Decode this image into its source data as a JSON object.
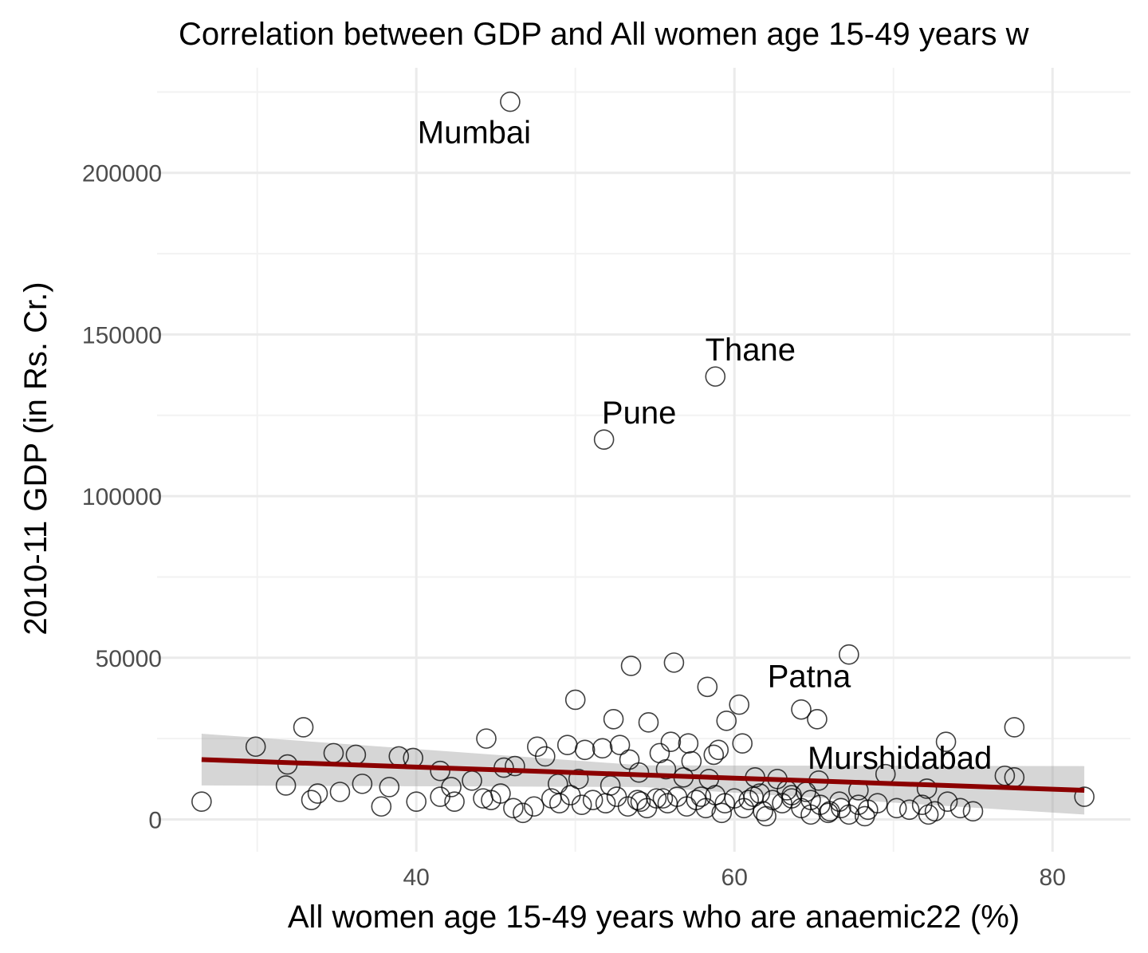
{
  "chart_data": {
    "type": "scatter",
    "title": "Correlation between GDP and All women age 15-49 years w",
    "xlabel": "All women age 15-49 years who are anaemic22 (%)",
    "ylabel": "2010-11 GDP (in Rs. Cr.)",
    "xlim": [
      23.7,
      84.9
    ],
    "ylim": [
      -10000,
      232500
    ],
    "x_ticks": [
      40,
      60,
      80
    ],
    "x_tick_labels": [
      "40",
      "60",
      "80"
    ],
    "x_minor_ticks": [
      30,
      50,
      70
    ],
    "y_ticks": [
      0,
      50000,
      100000,
      150000,
      200000
    ],
    "y_tick_labels": [
      "0",
      "50000",
      "100000",
      "150000",
      "200000"
    ],
    "y_minor_ticks": [
      25000,
      75000,
      125000,
      175000,
      225000
    ],
    "grid": true,
    "colors": {
      "trend": "#8b0000",
      "ribbon": "#999999",
      "points": "#000000"
    },
    "points": [
      [
        45.9,
        222000
      ],
      [
        58.8,
        137000
      ],
      [
        51.8,
        117500
      ],
      [
        67.2,
        51000
      ],
      [
        56.2,
        48500
      ],
      [
        53.5,
        47500
      ],
      [
        58.3,
        41000
      ],
      [
        60.3,
        35500
      ],
      [
        64.2,
        34000
      ],
      [
        65.2,
        31000
      ],
      [
        59.5,
        30500
      ],
      [
        52.4,
        31000
      ],
      [
        54.6,
        30000
      ],
      [
        50.0,
        37000
      ],
      [
        32.9,
        28500
      ],
      [
        77.6,
        28500
      ],
      [
        73.3,
        24000
      ],
      [
        29.9,
        22500
      ],
      [
        44.4,
        25000
      ],
      [
        47.6,
        22500
      ],
      [
        49.5,
        23000
      ],
      [
        50.6,
        21500
      ],
      [
        51.7,
        22000
      ],
      [
        52.8,
        23000
      ],
      [
        55.3,
        20500
      ],
      [
        56.0,
        24000
      ],
      [
        57.1,
        23500
      ],
      [
        58.7,
        20000
      ],
      [
        60.5,
        23500
      ],
      [
        59.0,
        21500
      ],
      [
        31.9,
        17000
      ],
      [
        34.8,
        20500
      ],
      [
        36.2,
        20000
      ],
      [
        38.9,
        19500
      ],
      [
        39.8,
        19000
      ],
      [
        41.5,
        15000
      ],
      [
        45.5,
        16000
      ],
      [
        46.2,
        16500
      ],
      [
        48.1,
        19500
      ],
      [
        53.4,
        18500
      ],
      [
        54.0,
        14500
      ],
      [
        55.7,
        15500
      ],
      [
        57.3,
        18000
      ],
      [
        61.3,
        13000
      ],
      [
        62.7,
        12500
      ],
      [
        65.3,
        12000
      ],
      [
        69.5,
        14000
      ],
      [
        31.8,
        10500
      ],
      [
        36.6,
        11000
      ],
      [
        38.3,
        10000
      ],
      [
        42.2,
        10000
      ],
      [
        43.5,
        12000
      ],
      [
        48.9,
        11000
      ],
      [
        50.2,
        12500
      ],
      [
        52.2,
        10500
      ],
      [
        56.8,
        13000
      ],
      [
        58.4,
        12500
      ],
      [
        63.3,
        9000
      ],
      [
        67.8,
        9000
      ],
      [
        72.1,
        9500
      ],
      [
        77.0,
        13500
      ],
      [
        77.6,
        13000
      ],
      [
        26.5,
        5500
      ],
      [
        33.4,
        6000
      ],
      [
        33.8,
        8000
      ],
      [
        35.2,
        8500
      ],
      [
        37.8,
        4000
      ],
      [
        40.0,
        5500
      ],
      [
        41.5,
        7000
      ],
      [
        42.4,
        5500
      ],
      [
        44.2,
        6500
      ],
      [
        44.7,
        6000
      ],
      [
        45.3,
        8000
      ],
      [
        46.1,
        3500
      ],
      [
        46.7,
        2000
      ],
      [
        47.4,
        4000
      ],
      [
        48.5,
        6500
      ],
      [
        49.0,
        5000
      ],
      [
        49.7,
        7500
      ],
      [
        50.4,
        4500
      ],
      [
        51.1,
        6000
      ],
      [
        51.9,
        5000
      ],
      [
        52.6,
        7000
      ],
      [
        53.3,
        4000
      ],
      [
        53.9,
        6000
      ],
      [
        54.5,
        3500
      ],
      [
        55.1,
        6500
      ],
      [
        55.8,
        5000
      ],
      [
        56.4,
        7000
      ],
      [
        57.0,
        4000
      ],
      [
        57.6,
        6000
      ],
      [
        58.2,
        3500
      ],
      [
        58.8,
        7500
      ],
      [
        59.4,
        5000
      ],
      [
        60.0,
        6500
      ],
      [
        60.6,
        3500
      ],
      [
        61.2,
        7000
      ],
      [
        61.8,
        2500
      ],
      [
        62.4,
        6000
      ],
      [
        63.0,
        5000
      ],
      [
        63.6,
        7500
      ],
      [
        64.2,
        3500
      ],
      [
        64.8,
        6000
      ],
      [
        65.4,
        4500
      ],
      [
        66.0,
        2500
      ],
      [
        66.6,
        5500
      ],
      [
        67.2,
        1500
      ],
      [
        67.8,
        4500
      ],
      [
        68.4,
        3000
      ],
      [
        69.0,
        5000
      ],
      [
        70.2,
        3500
      ],
      [
        71.0,
        3000
      ],
      [
        71.8,
        4500
      ],
      [
        72.6,
        2500
      ],
      [
        73.4,
        5500
      ],
      [
        74.2,
        3500
      ],
      [
        75.0,
        2500
      ],
      [
        82.0,
        7000
      ],
      [
        62.0,
        1000
      ],
      [
        59.2,
        2000
      ],
      [
        64.8,
        1500
      ],
      [
        65.9,
        2000
      ],
      [
        68.2,
        1000
      ],
      [
        72.2,
        1500
      ],
      [
        55.5,
        6500
      ],
      [
        54.1,
        5500
      ],
      [
        63.6,
        6500
      ],
      [
        60.9,
        6000
      ],
      [
        57.9,
        7000
      ],
      [
        61.6,
        8000
      ],
      [
        64.5,
        8500
      ],
      [
        66.7,
        3500
      ]
    ],
    "labels": [
      {
        "text": "Mumbai",
        "x": 45.9,
        "y": 222000
      },
      {
        "text": "Thane",
        "x": 58.8,
        "y": 137000
      },
      {
        "text": "Pune",
        "x": 51.8,
        "y": 117500
      },
      {
        "text": "Patna",
        "x": 64.2,
        "y": 34000
      },
      {
        "text": "Murshidabad",
        "x": 73.3,
        "y": 24000
      }
    ],
    "trend_line": {
      "method": "linear",
      "x": [
        26.5,
        82.0
      ],
      "y": [
        18500,
        9000
      ],
      "ci_lower": [
        10500,
        1500
      ],
      "ci_mid_x": 54.3,
      "ci_mid": [
        10000,
        16700
      ],
      "ci_upper": [
        26500,
        16500
      ]
    }
  }
}
